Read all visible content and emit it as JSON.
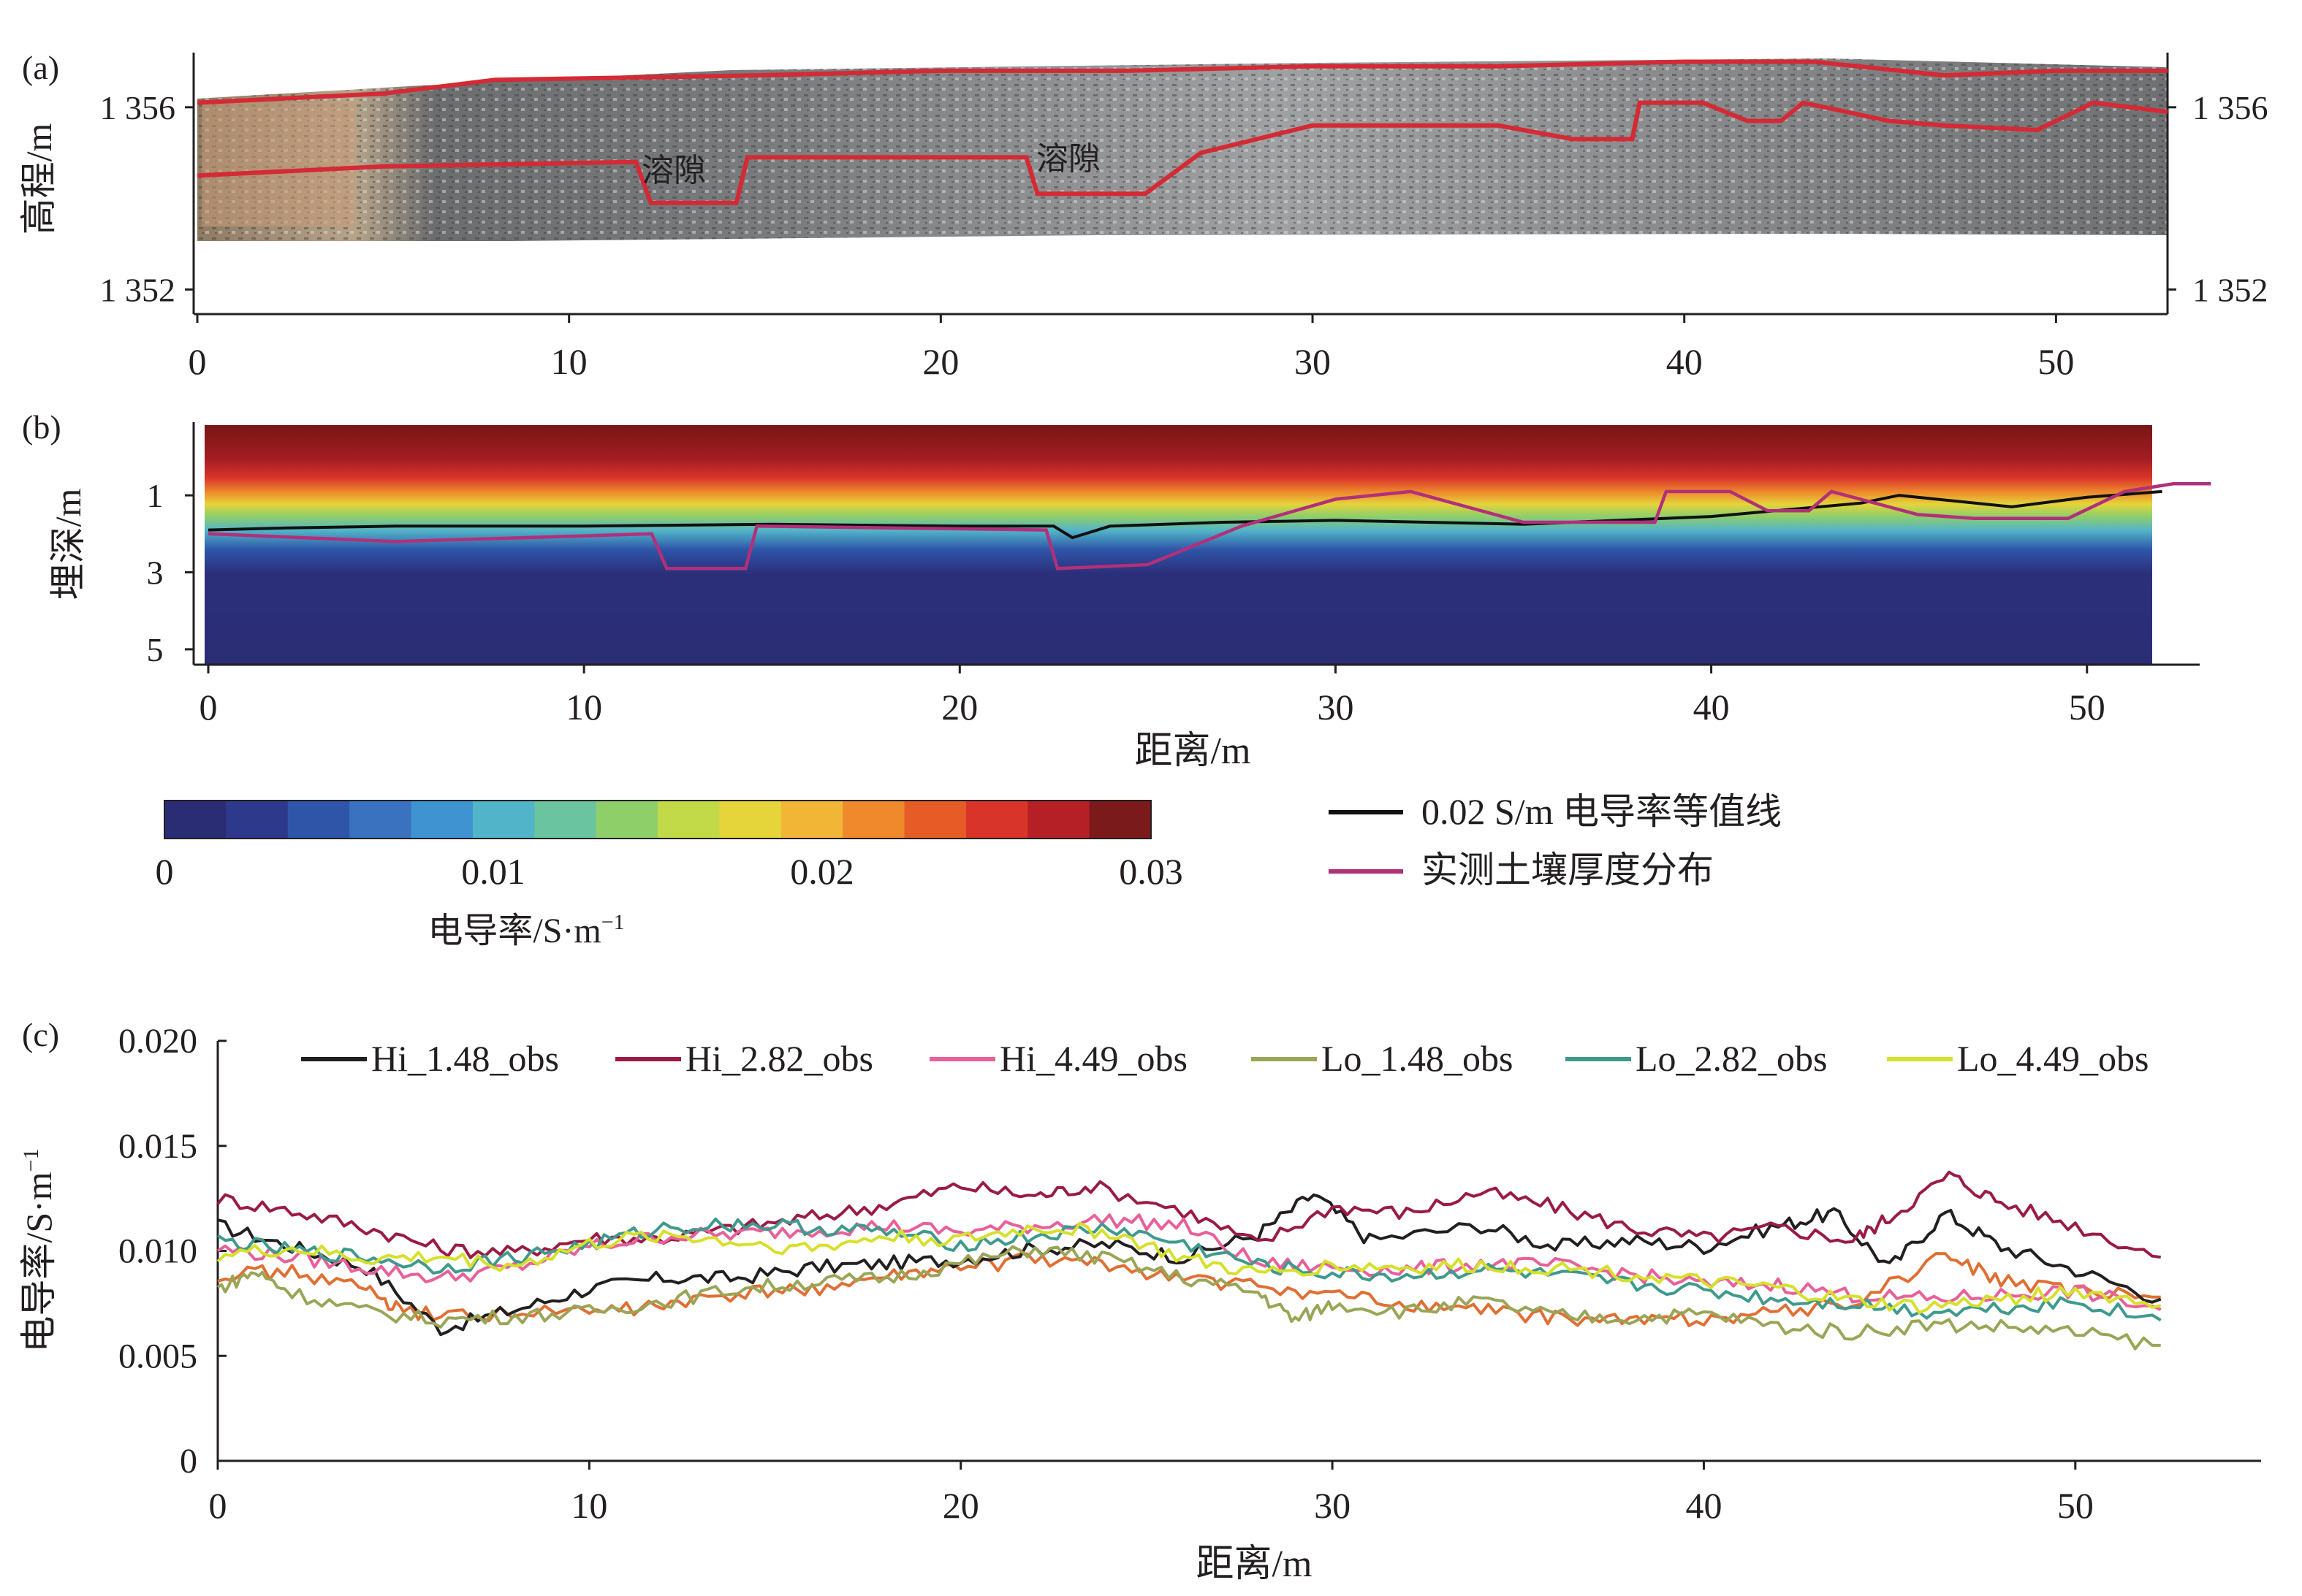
{
  "panel_a": {
    "label": "(a)",
    "ylabel": "高程/m",
    "yticks_left": [
      "1 356",
      "1 352"
    ],
    "yticks_right": [
      "1 356",
      "1 352"
    ],
    "xticks": [
      "0",
      "10",
      "20",
      "30",
      "40",
      "50"
    ],
    "annotations": [
      "溶隙",
      "溶隙"
    ]
  },
  "panel_b": {
    "label": "(b)",
    "ylabel": "埋深/m",
    "xlabel": "距离/m",
    "yticks": [
      "1",
      "3",
      "5"
    ],
    "xticks": [
      "0",
      "10",
      "20",
      "30",
      "40",
      "50"
    ]
  },
  "colorbar": {
    "ticks": [
      "0",
      "0.01",
      "0.02",
      "0.03"
    ],
    "label": "电导率/S·m",
    "label_sup": "−1",
    "colors": [
      "#2b2d74",
      "#2d3a8c",
      "#2f55a8",
      "#3a72bf",
      "#3f93d0",
      "#52b4c8",
      "#6ac4a0",
      "#8fcf6a",
      "#c2d948",
      "#e5d43a",
      "#f2b637",
      "#ee8a2c",
      "#e65c27",
      "#d9342a",
      "#b51f26",
      "#7a1a1a"
    ]
  },
  "legend_b": {
    "items": [
      {
        "label": "0.02 S/m 电导率等值线",
        "color": "#111111"
      },
      {
        "label": "实测土壤厚度分布",
        "color": "#b1307a"
      }
    ]
  },
  "panel_c": {
    "label": "(c)",
    "ylabel": "电导率/S·m",
    "ylabel_sup": "−1",
    "xlabel": "距离/m",
    "yticks": [
      "0",
      "0.005",
      "0.010",
      "0.015",
      "0.020"
    ],
    "xticks": [
      "0",
      "10",
      "20",
      "30",
      "40",
      "50"
    ]
  },
  "chart_data": [
    {
      "type": "line",
      "panel": "a",
      "xlim": [
        0,
        53
      ],
      "ylim": [
        1351.7,
        1357.2
      ],
      "series": [
        {
          "color": "#d42a35",
          "x": [
            0,
            5,
            8,
            15,
            20,
            25,
            30,
            35,
            40,
            43.5,
            47,
            50,
            53
          ],
          "y": [
            1356.1,
            1356.3,
            1356.6,
            1356.7,
            1356.8,
            1356.8,
            1356.9,
            1356.9,
            1357.0,
            1357.0,
            1356.7,
            1356.8,
            1356.8
          ]
        },
        {
          "color": "#d42a35",
          "x": [
            0,
            5,
            11.8,
            12.2,
            14.5,
            14.8,
            22.3,
            22.6,
            25.5,
            27,
            30,
            35,
            37,
            38.6,
            38.8,
            40.5,
            41.7,
            42.6,
            43.2,
            45.5,
            47,
            49.5,
            51,
            53
          ],
          "y": [
            1354.5,
            1354.7,
            1354.8,
            1353.9,
            1353.9,
            1354.9,
            1354.9,
            1354.1,
            1354.1,
            1355.0,
            1355.6,
            1355.6,
            1355.3,
            1355.3,
            1356.1,
            1356.1,
            1355.7,
            1355.7,
            1356.1,
            1355.7,
            1355.6,
            1355.5,
            1356.1,
            1355.9
          ]
        }
      ]
    },
    {
      "type": "line",
      "panel": "b",
      "xlim": [
        0,
        53
      ],
      "ylim": [
        5.4,
        -0.9
      ],
      "series": [
        {
          "color": "#111111",
          "x": [
            0,
            2,
            5,
            10,
            15,
            20,
            22.5,
            23,
            24,
            27,
            30,
            35,
            40,
            44,
            45,
            48,
            50,
            52
          ],
          "y": [
            1.9,
            1.85,
            1.8,
            1.8,
            1.75,
            1.8,
            1.8,
            2.1,
            1.8,
            1.7,
            1.65,
            1.75,
            1.55,
            1.2,
            1.0,
            1.3,
            1.05,
            0.9
          ]
        },
        {
          "color": "#b1307a",
          "x": [
            0,
            5,
            11.8,
            12.2,
            14.3,
            14.6,
            22.3,
            22.6,
            25,
            27.5,
            30,
            32,
            35,
            38.5,
            38.8,
            40.5,
            41.5,
            42.6,
            43.2,
            45.5,
            47,
            49.5,
            51,
            52.3,
            53.3
          ],
          "y": [
            2.0,
            2.2,
            2.0,
            2.9,
            2.9,
            1.8,
            1.9,
            2.9,
            2.8,
            1.8,
            1.1,
            0.9,
            1.7,
            1.7,
            0.9,
            0.9,
            1.4,
            1.4,
            0.9,
            1.5,
            1.6,
            1.6,
            0.9,
            0.7,
            0.7
          ]
        }
      ]
    },
    {
      "type": "line",
      "panel": "c",
      "xlim": [
        0,
        55
      ],
      "ylim": [
        0,
        0.02
      ],
      "series": [
        {
          "name": "Hi_1.48_obs",
          "color": "#231f20",
          "x": [
            0,
            2,
            4,
            6,
            8,
            10,
            12,
            14,
            16,
            18,
            20,
            22,
            24,
            26,
            28,
            29.5,
            31,
            34,
            36,
            38,
            40,
            42,
            43.5,
            45,
            46.5,
            48,
            50,
            52.3
          ],
          "y": [
            0.0112,
            0.0102,
            0.0092,
            0.0063,
            0.0072,
            0.0082,
            0.0087,
            0.0087,
            0.0092,
            0.0094,
            0.0096,
            0.0101,
            0.0103,
            0.0097,
            0.0108,
            0.0127,
            0.0105,
            0.0112,
            0.0102,
            0.0105,
            0.0102,
            0.0112,
            0.0118,
            0.0092,
            0.0118,
            0.0102,
            0.0091,
            0.0077
          ]
        },
        {
          "name": "Hi_2.82_obs",
          "color": "#9a1b44",
          "x": [
            0,
            2,
            4,
            6,
            8,
            10,
            12,
            14,
            16,
            18,
            20,
            22,
            23.5,
            26,
            28,
            30,
            32,
            34,
            36,
            38,
            40,
            42,
            44,
            45,
            46.6,
            48,
            50,
            52.3
          ],
          "y": [
            0.0125,
            0.0119,
            0.0111,
            0.0101,
            0.0099,
            0.0106,
            0.0106,
            0.0111,
            0.0116,
            0.0122,
            0.0131,
            0.0126,
            0.0131,
            0.0119,
            0.0103,
            0.0121,
            0.0118,
            0.0128,
            0.0121,
            0.0111,
            0.0106,
            0.0111,
            0.0105,
            0.0116,
            0.0136,
            0.0123,
            0.0112,
            0.0097
          ]
        },
        {
          "name": "Hi_4.49_obs",
          "color": "#e8609a",
          "x": [
            0,
            2,
            4,
            6,
            8,
            10,
            12,
            14,
            16,
            18,
            20,
            22,
            24,
            26,
            28,
            30,
            32,
            34,
            36,
            38,
            40,
            42,
            44,
            46,
            48,
            50,
            52.3
          ],
          "y": [
            0.0101,
            0.0097,
            0.0092,
            0.0087,
            0.0092,
            0.0102,
            0.0107,
            0.0108,
            0.011,
            0.0112,
            0.0109,
            0.0112,
            0.0115,
            0.0112,
            0.0094,
            0.0092,
            0.0091,
            0.0094,
            0.0093,
            0.0089,
            0.0084,
            0.0084,
            0.0079,
            0.0077,
            0.0079,
            0.0081,
            0.0072
          ]
        },
        {
          "name": "Lo_1.48_obs",
          "color": "#9aa556",
          "x": [
            0,
            1,
            2,
            4,
            6,
            8,
            10,
            12,
            14,
            16,
            18,
            20,
            22,
            24,
            26,
            28,
            29,
            30,
            32,
            34,
            36,
            38,
            40,
            42,
            44,
            46,
            48,
            50,
            52.3
          ],
          "y": [
            0.0082,
            0.009,
            0.008,
            0.0071,
            0.0067,
            0.0069,
            0.0071,
            0.0076,
            0.0082,
            0.0085,
            0.0087,
            0.0094,
            0.0101,
            0.0096,
            0.0087,
            0.008,
            0.0067,
            0.0075,
            0.0071,
            0.0076,
            0.0069,
            0.0068,
            0.007,
            0.0064,
            0.0061,
            0.0065,
            0.0064,
            0.0061,
            0.0055
          ]
        },
        {
          "name": "Lo_2.82_obs",
          "color": "#3f9a8d",
          "x": [
            0,
            2,
            4,
            6,
            8,
            10,
            12,
            14,
            16,
            18,
            20,
            22,
            24,
            26,
            28,
            30,
            32,
            34,
            36,
            38,
            40,
            42,
            44,
            46,
            48,
            50,
            52.3
          ],
          "y": [
            0.0105,
            0.01,
            0.0097,
            0.0092,
            0.0097,
            0.0103,
            0.0111,
            0.0113,
            0.0111,
            0.0109,
            0.0103,
            0.0107,
            0.0111,
            0.0103,
            0.0093,
            0.0089,
            0.0088,
            0.0091,
            0.0088,
            0.0084,
            0.0081,
            0.0077,
            0.0075,
            0.0071,
            0.0073,
            0.0076,
            0.0067
          ]
        },
        {
          "name": "Lo_4.49_obs",
          "color": "#d6e02a",
          "x": [
            0,
            2,
            4,
            6,
            8,
            10,
            12,
            14,
            16,
            18,
            20,
            22,
            24,
            26,
            28,
            30,
            32,
            34,
            36,
            38,
            40,
            42,
            44,
            46,
            48,
            50,
            52.3
          ],
          "y": [
            0.0098,
            0.0101,
            0.0096,
            0.0097,
            0.0093,
            0.0103,
            0.0108,
            0.0104,
            0.0101,
            0.0107,
            0.0105,
            0.0111,
            0.0109,
            0.0096,
            0.0089,
            0.0093,
            0.0092,
            0.0093,
            0.0092,
            0.0089,
            0.0085,
            0.0082,
            0.0076,
            0.0073,
            0.0077,
            0.0081,
            0.0074
          ]
        }
      ]
    },
    {
      "type": "line",
      "panel": "c-orange",
      "xlim": [
        0,
        55
      ],
      "ylim": [
        0,
        0.02
      ],
      "series": [
        {
          "color": "#e06f33",
          "x": [
            0,
            2,
            4,
            5,
            7,
            10,
            12,
            14,
            16,
            18,
            20,
            22,
            24,
            26,
            28,
            30,
            32,
            34,
            36,
            38,
            40,
            42,
            44,
            46.5,
            48,
            50,
            52.3
          ],
          "y": [
            0.0089,
            0.009,
            0.0082,
            0.007,
            0.007,
            0.0071,
            0.0074,
            0.0079,
            0.0082,
            0.0087,
            0.0092,
            0.0096,
            0.0093,
            0.0087,
            0.0083,
            0.0079,
            0.0074,
            0.0072,
            0.0068,
            0.0067,
            0.0068,
            0.0071,
            0.0075,
            0.0098,
            0.0086,
            0.008,
            0.0078
          ]
        }
      ]
    }
  ]
}
